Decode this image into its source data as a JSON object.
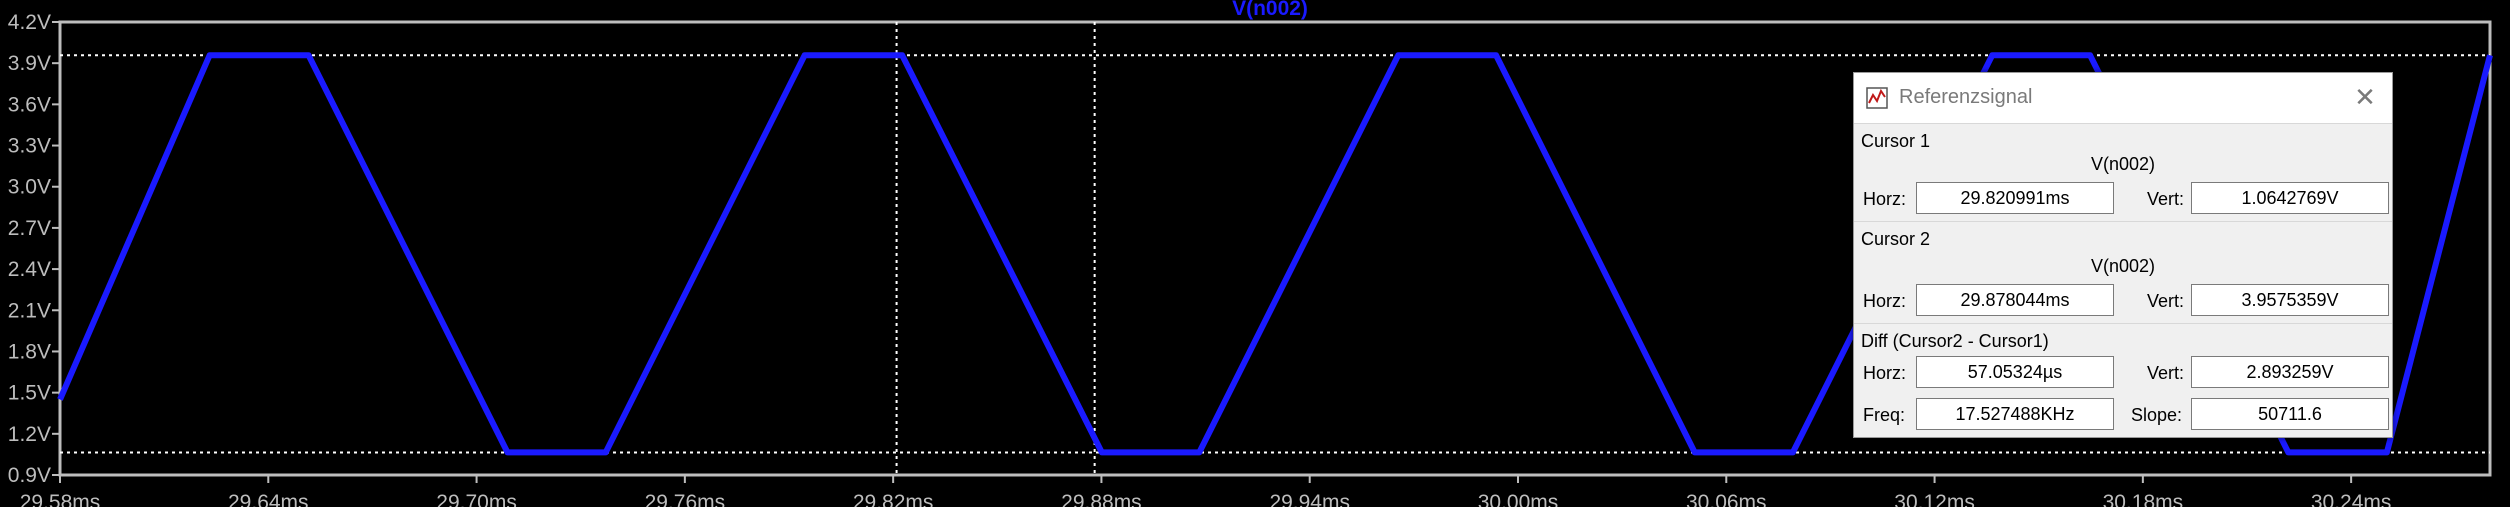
{
  "plot": {
    "trace_name": "V(n002)",
    "colors": {
      "background": "#000000",
      "trace": "#1a1aff",
      "axis": "#bdbdbd",
      "cursor": "#ffffff"
    },
    "y_ticks": [
      "4.2V",
      "3.9V",
      "3.6V",
      "3.3V",
      "3.0V",
      "2.7V",
      "2.4V",
      "2.1V",
      "1.8V",
      "1.5V",
      "1.2V",
      "0.9V"
    ],
    "x_ticks": [
      "29.58ms",
      "29.64ms",
      "29.70ms",
      "29.76ms",
      "29.82ms",
      "29.88ms",
      "29.94ms",
      "30.00ms",
      "30.06ms",
      "30.12ms",
      "30.18ms",
      "30.24ms"
    ]
  },
  "chart_data": {
    "type": "line",
    "xlabel": "",
    "ylabel": "",
    "xlim_ms": [
      29.58,
      30.28
    ],
    "ylim_V": [
      0.9,
      4.2
    ],
    "grid": false,
    "series": [
      {
        "name": "V(n002)",
        "x_ms": [
          29.58,
          29.6231,
          29.6516,
          29.7089,
          29.7372,
          29.7945,
          29.8226,
          29.8801,
          29.9082,
          29.9655,
          29.9937,
          30.0509,
          30.0792,
          30.1366,
          30.1648,
          30.2219,
          30.2503,
          30.28
        ],
        "y_V": [
          1.45,
          3.9575,
          3.9575,
          1.0643,
          1.0643,
          3.9575,
          3.9575,
          1.0643,
          1.0643,
          3.9575,
          3.9575,
          1.0643,
          1.0643,
          3.9575,
          3.9575,
          1.0643,
          1.0643,
          3.9575
        ]
      }
    ],
    "cursors": [
      {
        "name": "Cursor 1",
        "x_ms": 29.820991,
        "y_V": 1.0642769
      },
      {
        "name": "Cursor 2",
        "x_ms": 29.878044,
        "y_V": 3.9575359
      }
    ]
  },
  "dialog": {
    "title": "Referenzsignal",
    "close_glyph": "✕",
    "icon": "ltspice-probe-icon",
    "cursor1": {
      "title": "Cursor 1",
      "trace": "V(n002)",
      "horz_label": "Horz:",
      "horz": "29.820991ms",
      "vert_label": "Vert:",
      "vert": "1.0642769V"
    },
    "cursor2": {
      "title": "Cursor 2",
      "trace": "V(n002)",
      "horz_label": "Horz:",
      "horz": "29.878044ms",
      "vert_label": "Vert:",
      "vert": "3.9575359V"
    },
    "diff": {
      "title": "Diff (Cursor2 - Cursor1)",
      "horz_label": "Horz:",
      "horz": "57.05324µs",
      "vert_label": "Vert:",
      "vert": "2.893259V",
      "freq_label": "Freq:",
      "freq": "17.527488KHz",
      "slope_label": "Slope:",
      "slope": "50711.6"
    }
  }
}
